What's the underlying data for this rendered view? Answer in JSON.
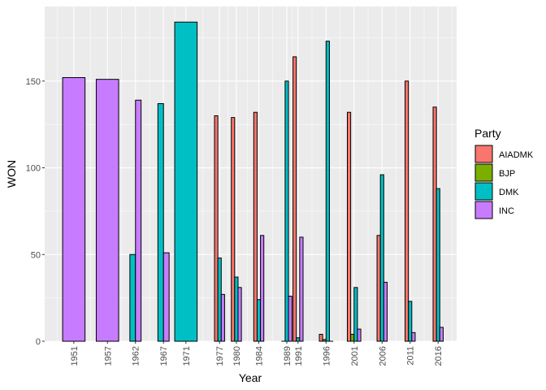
{
  "chart_data": {
    "type": "bar",
    "title": "",
    "xlabel": "Year",
    "ylabel": "WON",
    "ylim": [
      0,
      193
    ],
    "xlim": [
      1945.8,
      2019.3
    ],
    "y_ticks": [
      0,
      50,
      100,
      150
    ],
    "x_ticks": [
      1951,
      1957,
      1962,
      1967,
      1971,
      1977,
      1980,
      1984,
      1989,
      1991,
      1996,
      2001,
      2006,
      2011,
      2016
    ],
    "grid": true,
    "legend": {
      "title": "Party",
      "placement": "right",
      "entries": [
        "AIADMK",
        "BJP",
        "DMK",
        "INC"
      ]
    },
    "colors": {
      "AIADMK": "#F8766D",
      "BJP": "#7CAE00",
      "DMK": "#00BFC4",
      "INC": "#C77CFF"
    },
    "groups": [
      {
        "year": 1951,
        "bars": [
          {
            "party": "INC",
            "value": 152
          }
        ]
      },
      {
        "year": 1957,
        "bars": [
          {
            "party": "INC",
            "value": 151
          }
        ]
      },
      {
        "year": 1962,
        "bars": [
          {
            "party": "DMK",
            "value": 50
          },
          {
            "party": "INC",
            "value": 139
          }
        ]
      },
      {
        "year": 1967,
        "bars": [
          {
            "party": "DMK",
            "value": 137
          },
          {
            "party": "INC",
            "value": 51
          }
        ]
      },
      {
        "year": 1971,
        "bars": [
          {
            "party": "DMK",
            "value": 184
          }
        ]
      },
      {
        "year": 1977,
        "bars": [
          {
            "party": "AIADMK",
            "value": 130
          },
          {
            "party": "DMK",
            "value": 48
          },
          {
            "party": "INC",
            "value": 27
          }
        ]
      },
      {
        "year": 1980,
        "bars": [
          {
            "party": "AIADMK",
            "value": 129
          },
          {
            "party": "DMK",
            "value": 37
          },
          {
            "party": "INC",
            "value": 31
          }
        ]
      },
      {
        "year": 1984,
        "bars": [
          {
            "party": "AIADMK",
            "value": 132
          },
          {
            "party": "DMK",
            "value": 24
          },
          {
            "party": "INC",
            "value": 61
          }
        ]
      },
      {
        "year": 1989,
        "bars": [
          {
            "party": "AIADMK",
            "value": 0
          },
          {
            "party": "DMK",
            "value": 150
          },
          {
            "party": "INC",
            "value": 26
          }
        ]
      },
      {
        "year": 1991,
        "bars": [
          {
            "party": "AIADMK",
            "value": 164
          },
          {
            "party": "DMK",
            "value": 2
          },
          {
            "party": "INC",
            "value": 60
          }
        ]
      },
      {
        "year": 1996,
        "bars": [
          {
            "party": "AIADMK",
            "value": 4
          },
          {
            "party": "BJP",
            "value": 1
          },
          {
            "party": "DMK",
            "value": 173
          },
          {
            "party": "INC",
            "value": 0
          }
        ]
      },
      {
        "year": 2001,
        "bars": [
          {
            "party": "AIADMK",
            "value": 132
          },
          {
            "party": "BJP",
            "value": 4
          },
          {
            "party": "DMK",
            "value": 31
          },
          {
            "party": "INC",
            "value": 7
          }
        ]
      },
      {
        "year": 2006,
        "bars": [
          {
            "party": "AIADMK",
            "value": 61
          },
          {
            "party": "DMK",
            "value": 96
          },
          {
            "party": "INC",
            "value": 34
          }
        ]
      },
      {
        "year": 2011,
        "bars": [
          {
            "party": "AIADMK",
            "value": 150
          },
          {
            "party": "DMK",
            "value": 23
          },
          {
            "party": "INC",
            "value": 5
          }
        ]
      },
      {
        "year": 2016,
        "bars": [
          {
            "party": "AIADMK",
            "value": 135
          },
          {
            "party": "DMK",
            "value": 88
          },
          {
            "party": "INC",
            "value": 8
          }
        ]
      }
    ]
  }
}
